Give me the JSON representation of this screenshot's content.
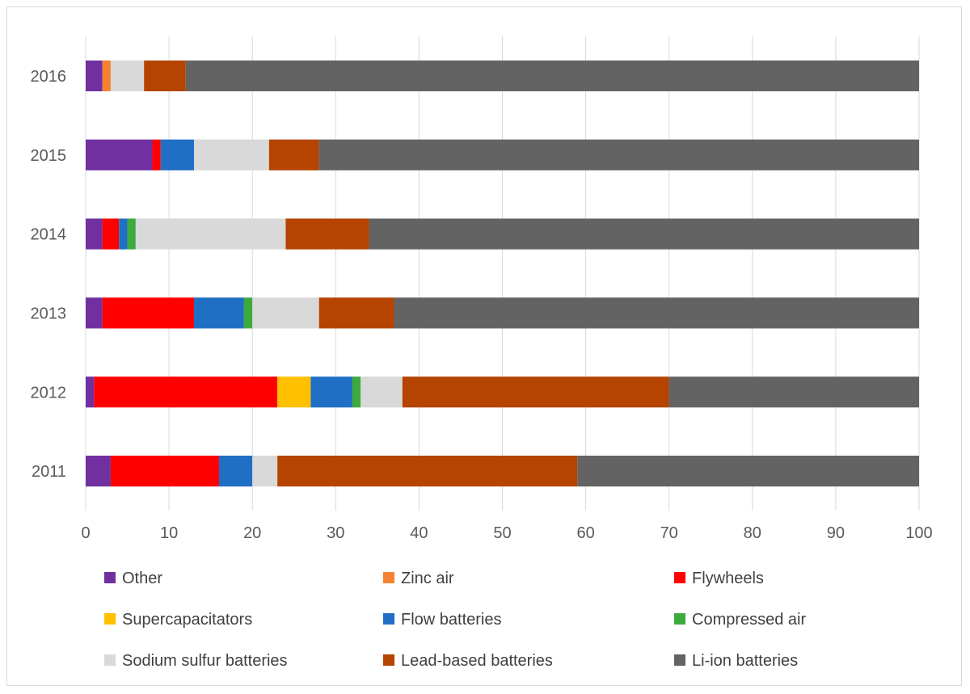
{
  "chart_data": {
    "type": "bar",
    "orientation": "horizontal",
    "stacked": true,
    "title": "",
    "xlabel": "",
    "ylabel": "",
    "xlim": [
      0,
      100
    ],
    "x_ticks": [
      0,
      10,
      20,
      30,
      40,
      50,
      60,
      70,
      80,
      90,
      100
    ],
    "grid": "vertical",
    "legend_position": "bottom",
    "categories": [
      "2011",
      "2012",
      "2013",
      "2014",
      "2015",
      "2016"
    ],
    "series": [
      {
        "name": "Other",
        "color": "#7030A0",
        "values": [
          3,
          1,
          2,
          2,
          8,
          2
        ]
      },
      {
        "name": "Zinc air",
        "color": "#F58232",
        "values": [
          0,
          0,
          0,
          0,
          0,
          1
        ]
      },
      {
        "name": "Flywheels",
        "color": "#FF0000",
        "values": [
          13,
          22,
          11,
          2,
          1,
          0
        ]
      },
      {
        "name": "Supercapacitators",
        "color": "#FFC000",
        "values": [
          0,
          4,
          0,
          0,
          0,
          0
        ]
      },
      {
        "name": "Flow batteries",
        "color": "#1F6FC5",
        "values": [
          4,
          5,
          6,
          1,
          4,
          0
        ]
      },
      {
        "name": "Compressed air",
        "color": "#3DAA3D",
        "values": [
          0,
          1,
          1,
          1,
          0,
          0
        ]
      },
      {
        "name": "Sodium sulfur batteries",
        "color": "#D9D9D9",
        "values": [
          3,
          5,
          8,
          18,
          9,
          4
        ]
      },
      {
        "name": "Lead-based batteries",
        "color": "#B44400",
        "values": [
          36,
          32,
          9,
          10,
          6,
          5
        ]
      },
      {
        "name": "Li-ion batteries",
        "color": "#636363",
        "values": [
          41,
          30,
          63,
          66,
          72,
          88
        ]
      }
    ]
  }
}
